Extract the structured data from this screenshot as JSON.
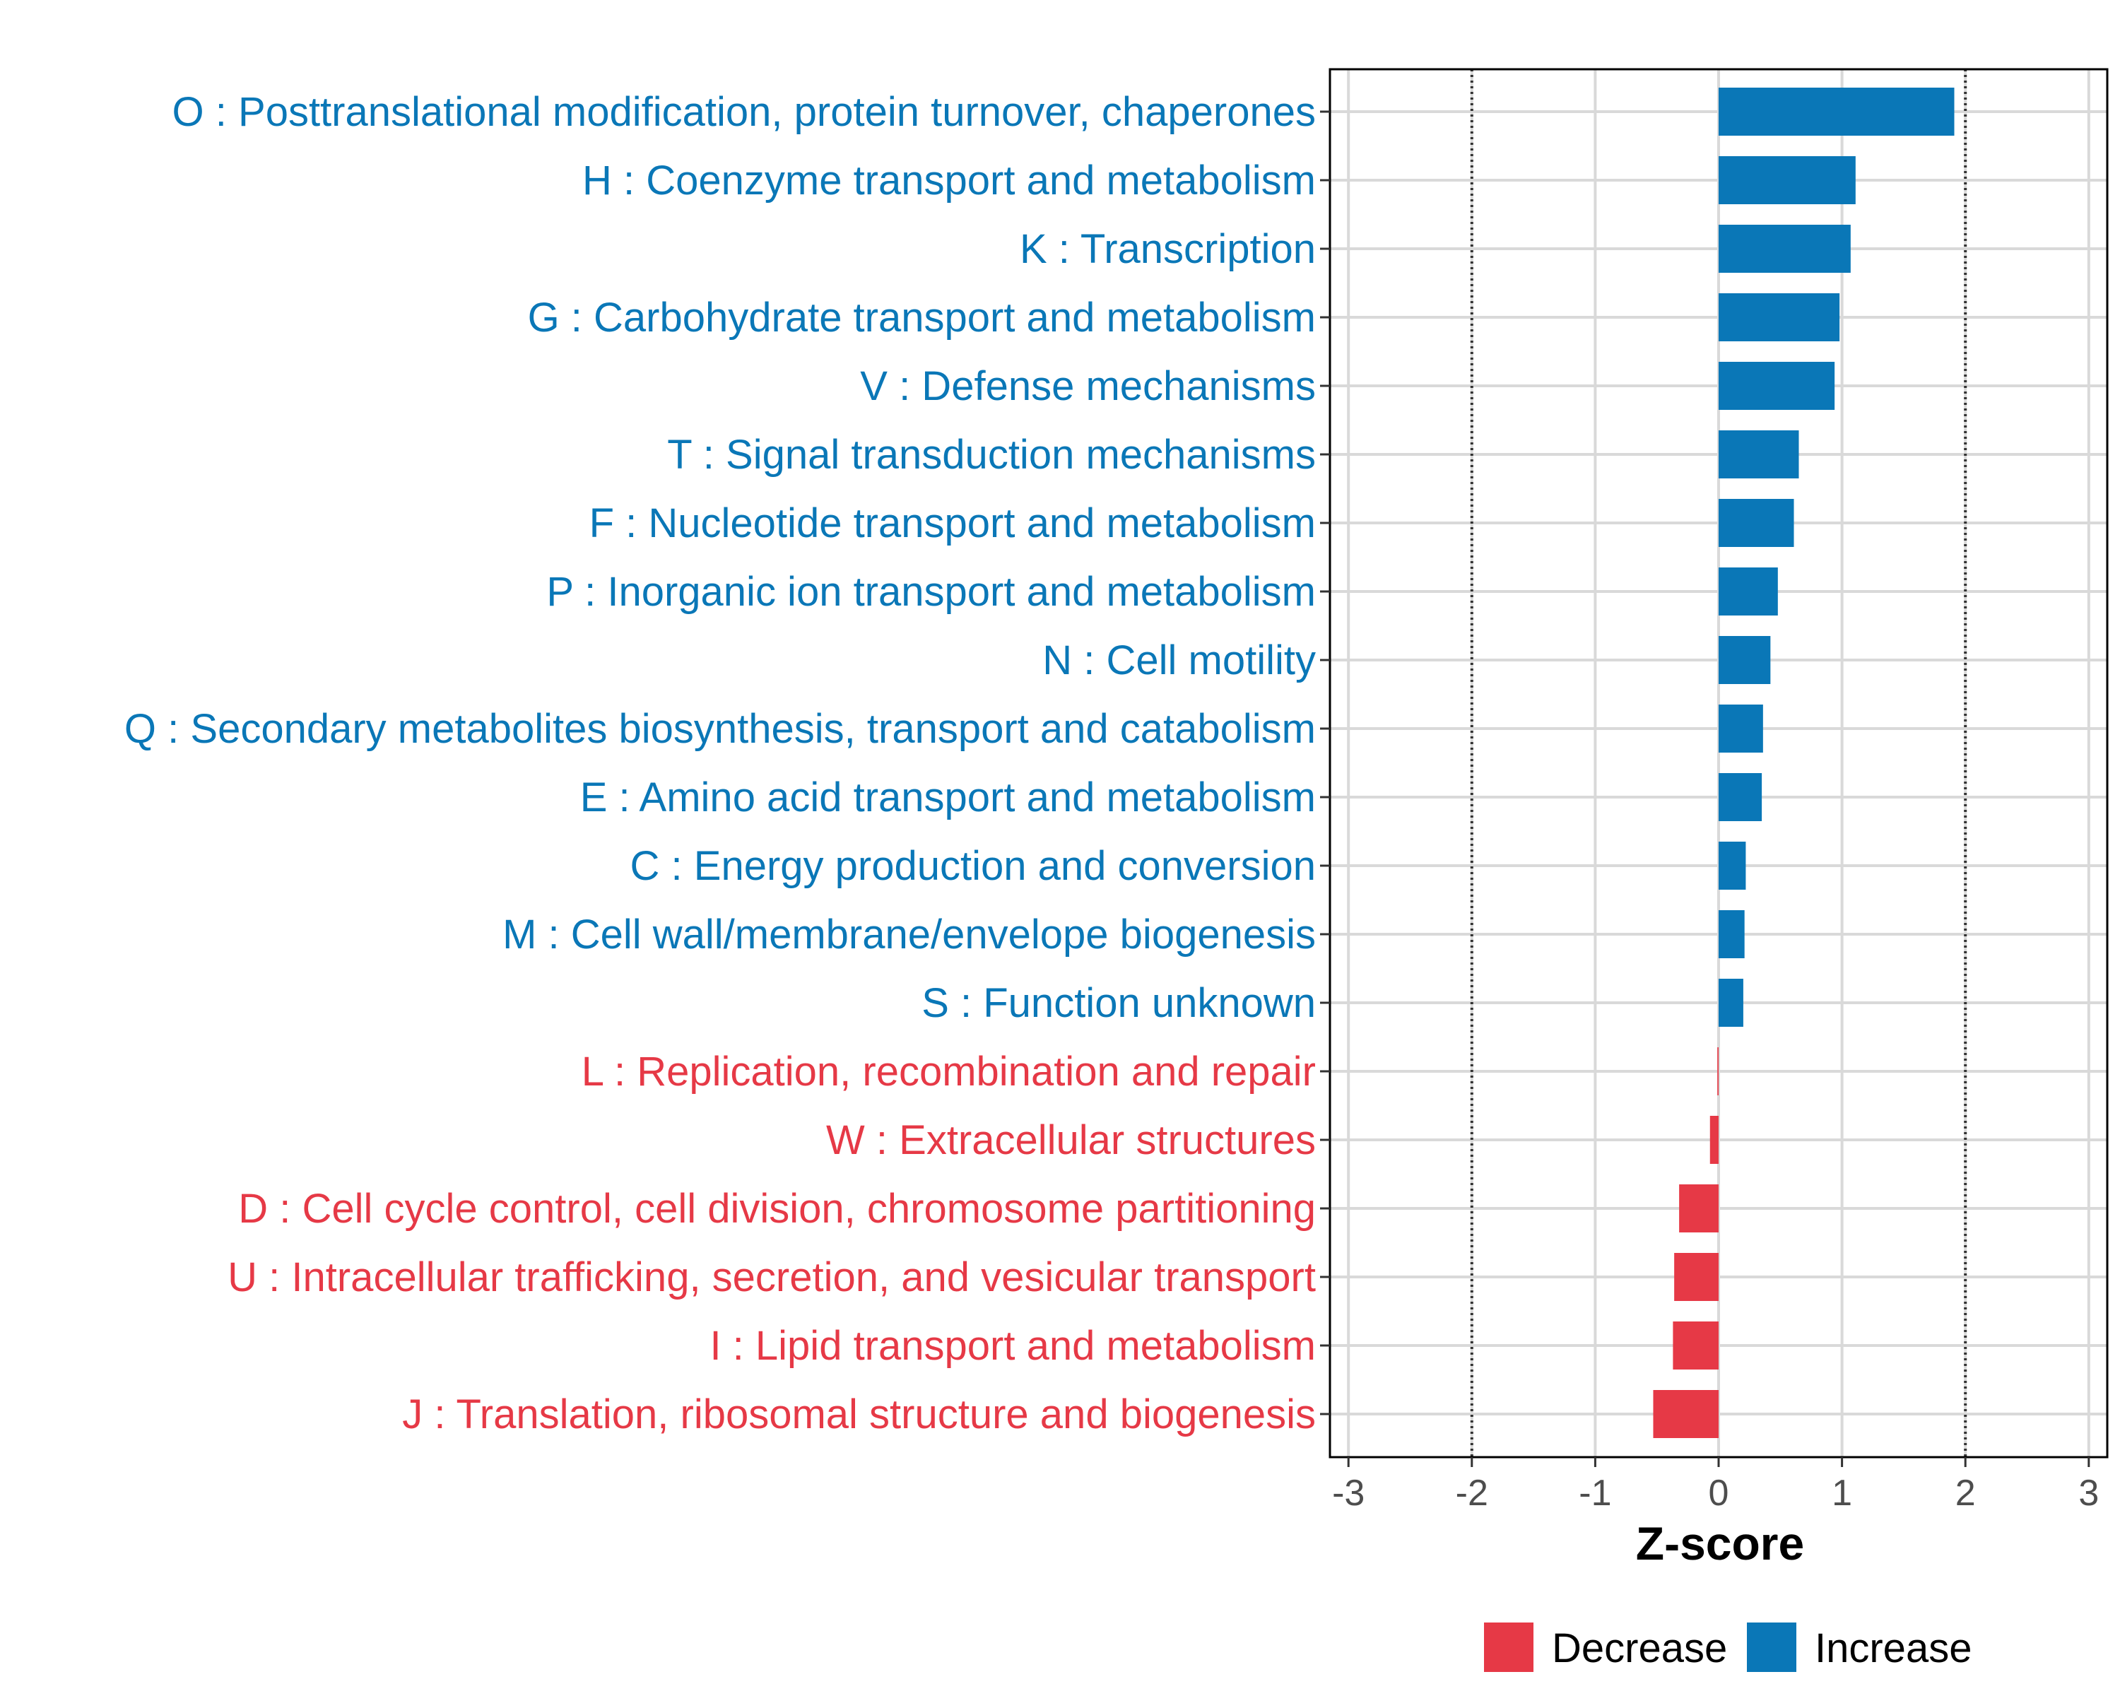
{
  "chart_data": {
    "type": "bar",
    "orientation": "horizontal",
    "xlabel": "Z-score",
    "ylabel": "",
    "xlim": [
      -3.15,
      3.15
    ],
    "xticks": [
      -3,
      -2,
      -1,
      0,
      1,
      2,
      3
    ],
    "xtick_labels": [
      "-3",
      "-2",
      "-1",
      "0",
      "1",
      "2",
      "3"
    ],
    "threshold_lines": [
      -2,
      2
    ],
    "grid": true,
    "legend_position": "bottom-right",
    "categories": [
      "O : Posttranslational modification, protein turnover, chaperones",
      "H : Coenzyme transport and metabolism",
      "K : Transcription",
      "G : Carbohydrate transport and metabolism",
      "V : Defense mechanisms",
      "T : Signal transduction mechanisms",
      "F : Nucleotide transport and metabolism",
      "P : Inorganic ion transport and metabolism",
      "N : Cell motility",
      "Q : Secondary metabolites biosynthesis, transport and catabolism",
      "E : Amino acid transport and metabolism",
      "C : Energy production and conversion",
      "M : Cell wall/membrane/envelope biogenesis",
      "S : Function unknown",
      "L : Replication, recombination and repair",
      "W : Extracellular structures",
      "D : Cell cycle control, cell division, chromosome partitioning",
      "U : Intracellular trafficking, secretion, and vesicular transport",
      "I : Lipid transport and metabolism",
      "J : Translation, ribosomal structure and biogenesis"
    ],
    "values": [
      1.91,
      1.11,
      1.07,
      0.98,
      0.94,
      0.65,
      0.61,
      0.48,
      0.42,
      0.36,
      0.35,
      0.22,
      0.21,
      0.2,
      -0.01,
      -0.07,
      -0.32,
      -0.36,
      -0.37,
      -0.53
    ],
    "groups": [
      "Increase",
      "Increase",
      "Increase",
      "Increase",
      "Increase",
      "Increase",
      "Increase",
      "Increase",
      "Increase",
      "Increase",
      "Increase",
      "Increase",
      "Increase",
      "Increase",
      "Decrease",
      "Decrease",
      "Decrease",
      "Decrease",
      "Decrease",
      "Decrease"
    ],
    "legend": [
      {
        "name": "Decrease",
        "color": "#e63946"
      },
      {
        "name": "Increase",
        "color": "#0a77b7"
      }
    ]
  }
}
